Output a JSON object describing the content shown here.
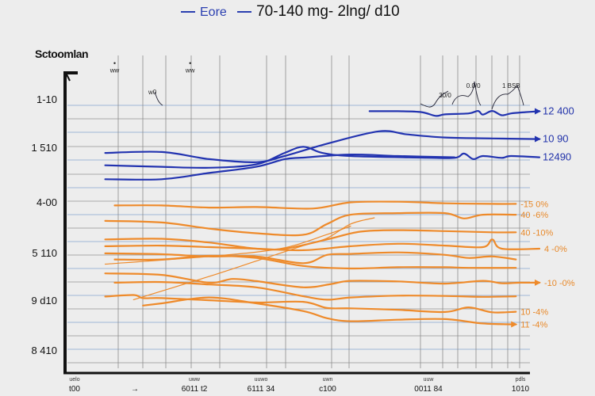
{
  "colors": {
    "blue": "#2233b0",
    "orange": "#ee8a2a",
    "grid_v": "#8a8a8a",
    "grid_h_blue": "#9fb6d8",
    "grid_h_gray": "#a9a9a9",
    "axis": "#111111",
    "background": "#ededed"
  },
  "chart_data": {
    "type": "line",
    "title": "",
    "legend": {
      "placement": "top-center",
      "entries": [
        {
          "name": "Eore",
          "color": "#2a3fb0"
        },
        {
          "name": "70-140 mg- 2lng/ d10",
          "color": "#2a3fb0"
        }
      ]
    },
    "ylabel": "Sctoomlan",
    "yticks": [
      "1-10",
      "1 510",
      "4-00",
      "5 110",
      "9 d10",
      "8 410"
    ],
    "xticks": [
      {
        "label": "t00",
        "sub": "uelo"
      },
      {
        "label": "→",
        "sub": ""
      },
      {
        "label": "6011 t2",
        "sub": "uww"
      },
      {
        "label": "6111 34",
        "sub": "uuwo"
      },
      {
        "label": "c100",
        "sub": "uwn"
      },
      {
        "label": "0011 84",
        "sub": "uuw"
      },
      {
        "label": "1010",
        "sub": "pdls"
      }
    ],
    "x_domain": [
      0,
      100
    ],
    "y_domain": [
      0,
      100
    ],
    "grid": true,
    "annotations": [
      {
        "text": "ww",
        "x": 10,
        "y": 97,
        "marker": true
      },
      {
        "text": "ww",
        "x": 26,
        "y": 97,
        "marker": true
      },
      {
        "text": "w0",
        "x": 18,
        "y": 90
      },
      {
        "text": "30/0",
        "x": 80,
        "y": 89
      },
      {
        "text": "0.0/0",
        "x": 86,
        "y": 92
      },
      {
        "text": "1 BSB",
        "x": 94,
        "y": 92
      }
    ],
    "series": [
      {
        "name": "12 400",
        "group": "blue",
        "end_label": "12 400",
        "arrow": true,
        "points": [
          [
            64,
            84.5
          ],
          [
            70,
            84.5
          ],
          [
            75,
            84.2
          ],
          [
            78,
            83
          ],
          [
            80,
            83.5
          ],
          [
            85,
            83.8
          ],
          [
            87,
            84.6
          ],
          [
            88,
            83.4
          ],
          [
            90,
            84.6
          ],
          [
            92,
            83.2
          ],
          [
            94,
            83.8
          ],
          [
            97,
            84.2
          ],
          [
            100,
            84.5
          ]
        ]
      },
      {
        "name": "10 90",
        "group": "blue",
        "end_label": "10 90",
        "arrow": true,
        "points": [
          [
            8,
            71
          ],
          [
            20,
            71.3
          ],
          [
            30,
            69
          ],
          [
            40,
            68
          ],
          [
            46,
            70
          ],
          [
            55,
            74
          ],
          [
            66,
            78
          ],
          [
            72,
            77
          ],
          [
            80,
            76
          ],
          [
            90,
            75.7
          ],
          [
            100,
            75.5
          ]
        ]
      },
      {
        "name": "12490",
        "group": "blue",
        "end_label": "12490",
        "arrow": false,
        "points": [
          [
            8,
            67
          ],
          [
            20,
            66.5
          ],
          [
            30,
            66.2
          ],
          [
            40,
            67.3
          ],
          [
            46,
            71
          ],
          [
            50,
            73
          ],
          [
            54,
            71
          ],
          [
            60,
            70
          ],
          [
            75,
            69.5
          ],
          [
            82,
            69.4
          ],
          [
            84,
            70.8
          ],
          [
            86,
            69
          ],
          [
            88,
            70
          ],
          [
            92,
            69.4
          ],
          [
            94,
            70
          ],
          [
            100,
            69.6
          ]
        ]
      },
      {
        "name": "blue-4",
        "group": "blue",
        "end_label": "",
        "arrow": false,
        "points": [
          [
            8,
            62.5
          ],
          [
            20,
            62.5
          ],
          [
            30,
            64.5
          ],
          [
            40,
            66.5
          ],
          [
            46,
            69
          ],
          [
            50,
            69.5
          ],
          [
            60,
            70.5
          ],
          [
            70,
            70
          ],
          [
            82,
            69.6
          ]
        ]
      },
      {
        "name": "-15 0%",
        "group": "orange",
        "end_label": "-15 0%",
        "arrow": false,
        "points": [
          [
            10,
            54
          ],
          [
            20,
            54
          ],
          [
            30,
            53.3
          ],
          [
            40,
            53.5
          ],
          [
            52,
            53
          ],
          [
            60,
            55
          ],
          [
            70,
            55.2
          ],
          [
            80,
            54.7
          ],
          [
            90,
            54.5
          ],
          [
            95,
            54.5
          ]
        ]
      },
      {
        "name": "40 -6%",
        "group": "orange",
        "end_label": "40 -6%",
        "arrow": false,
        "points": [
          [
            8,
            49
          ],
          [
            20,
            48.5
          ],
          [
            30,
            46.5
          ],
          [
            40,
            45
          ],
          [
            50,
            44.5
          ],
          [
            55,
            48
          ],
          [
            60,
            51
          ],
          [
            70,
            51.5
          ],
          [
            80,
            51.5
          ],
          [
            84,
            49.8
          ],
          [
            88,
            51
          ],
          [
            95,
            51
          ]
        ]
      },
      {
        "name": "40 -10%",
        "group": "orange",
        "end_label": "40 -10%",
        "arrow": false,
        "points": [
          [
            8,
            43
          ],
          [
            20,
            43.2
          ],
          [
            30,
            42
          ],
          [
            40,
            40
          ],
          [
            46,
            40
          ],
          [
            55,
            43
          ],
          [
            62,
            45.5
          ],
          [
            70,
            46
          ],
          [
            80,
            45.7
          ],
          [
            90,
            45.3
          ],
          [
            95,
            45.3
          ]
        ]
      },
      {
        "name": "4 -0%",
        "group": "orange",
        "end_label": "4 -0%",
        "arrow": false,
        "points": [
          [
            8,
            40.8
          ],
          [
            20,
            41
          ],
          [
            30,
            40.5
          ],
          [
            40,
            40
          ],
          [
            50,
            39.5
          ],
          [
            60,
            40.8
          ],
          [
            70,
            41.6
          ],
          [
            80,
            41
          ],
          [
            88,
            40.5
          ],
          [
            90,
            43
          ],
          [
            92,
            40
          ],
          [
            100,
            40
          ]
        ]
      },
      {
        "name": "orange-5",
        "group": "orange",
        "end_label": "",
        "arrow": false,
        "points": [
          [
            8,
            38.5
          ],
          [
            20,
            38.2
          ],
          [
            30,
            37.5
          ],
          [
            40,
            37.5
          ],
          [
            50,
            35.3
          ],
          [
            55,
            38
          ],
          [
            60,
            38.3
          ],
          [
            70,
            38.8
          ],
          [
            80,
            38
          ],
          [
            85,
            37
          ],
          [
            90,
            37.5
          ],
          [
            95,
            36.5
          ]
        ]
      },
      {
        "name": "orange-6",
        "group": "orange",
        "end_label": "",
        "arrow": false,
        "points": [
          [
            10,
            36.5
          ],
          [
            20,
            36.5
          ],
          [
            30,
            37.7
          ],
          [
            40,
            37
          ],
          [
            50,
            34.4
          ],
          [
            60,
            33.6
          ],
          [
            70,
            34
          ],
          [
            80,
            34
          ],
          [
            85,
            33.8
          ],
          [
            95,
            33.8
          ]
        ]
      },
      {
        "name": "-10 -0%",
        "group": "orange",
        "end_label": "-10 -0%",
        "arrow": true,
        "points": [
          [
            8,
            32
          ],
          [
            20,
            31.5
          ],
          [
            30,
            29
          ],
          [
            35,
            30.2
          ],
          [
            40,
            29.5
          ],
          [
            50,
            27.5
          ],
          [
            56,
            28.6
          ],
          [
            60,
            29.6
          ],
          [
            70,
            29.4
          ],
          [
            80,
            28.7
          ],
          [
            88,
            29.6
          ],
          [
            92,
            28.8
          ],
          [
            96,
            29
          ],
          [
            100,
            29
          ]
        ]
      },
      {
        "name": "orange-8",
        "group": "orange",
        "end_label": "",
        "arrow": false,
        "points": [
          [
            10,
            29
          ],
          [
            20,
            29.2
          ],
          [
            30,
            28.4
          ],
          [
            40,
            27.5
          ],
          [
            50,
            24.6
          ],
          [
            55,
            23.5
          ],
          [
            60,
            24.2
          ],
          [
            70,
            24.8
          ],
          [
            80,
            24.7
          ],
          [
            88,
            24.4
          ],
          [
            95,
            24.6
          ]
        ]
      },
      {
        "name": "10 -4%",
        "group": "orange",
        "end_label": "10 -4%",
        "arrow": false,
        "points": [
          [
            8,
            24.5
          ],
          [
            14,
            25
          ],
          [
            16,
            24
          ],
          [
            20,
            24
          ],
          [
            30,
            23.3
          ],
          [
            40,
            22.6
          ],
          [
            50,
            22.8
          ],
          [
            55,
            20.8
          ],
          [
            60,
            20.7
          ],
          [
            70,
            20.2
          ],
          [
            80,
            19.5
          ],
          [
            85,
            21
          ],
          [
            90,
            19.4
          ],
          [
            95,
            19.6
          ]
        ]
      },
      {
        "name": "11 -4%",
        "group": "orange",
        "end_label": "11 -4%",
        "arrow": true,
        "points": [
          [
            16,
            21.6
          ],
          [
            20,
            22.3
          ],
          [
            30,
            24.2
          ],
          [
            40,
            22.3
          ],
          [
            50,
            19.8
          ],
          [
            55,
            17.5
          ],
          [
            60,
            16.5
          ],
          [
            70,
            17
          ],
          [
            80,
            17.2
          ],
          [
            88,
            15.8
          ],
          [
            95,
            15.5
          ]
        ]
      },
      {
        "name": "orange-diag-1",
        "group": "orange",
        "end_label": "",
        "arrow": false,
        "points": [
          [
            14,
            23.5
          ],
          [
            30,
            31
          ],
          [
            40,
            36
          ],
          [
            50,
            41
          ],
          [
            55,
            43.4
          ],
          [
            60,
            48
          ],
          [
            65,
            50
          ]
        ]
      },
      {
        "name": "orange-diag-2",
        "group": "orange",
        "end_label": "",
        "arrow": false,
        "points": [
          [
            8,
            35
          ],
          [
            30,
            37.5
          ],
          [
            45,
            40
          ],
          [
            55,
            44.6
          ],
          [
            60,
            47.3
          ]
        ]
      }
    ]
  }
}
